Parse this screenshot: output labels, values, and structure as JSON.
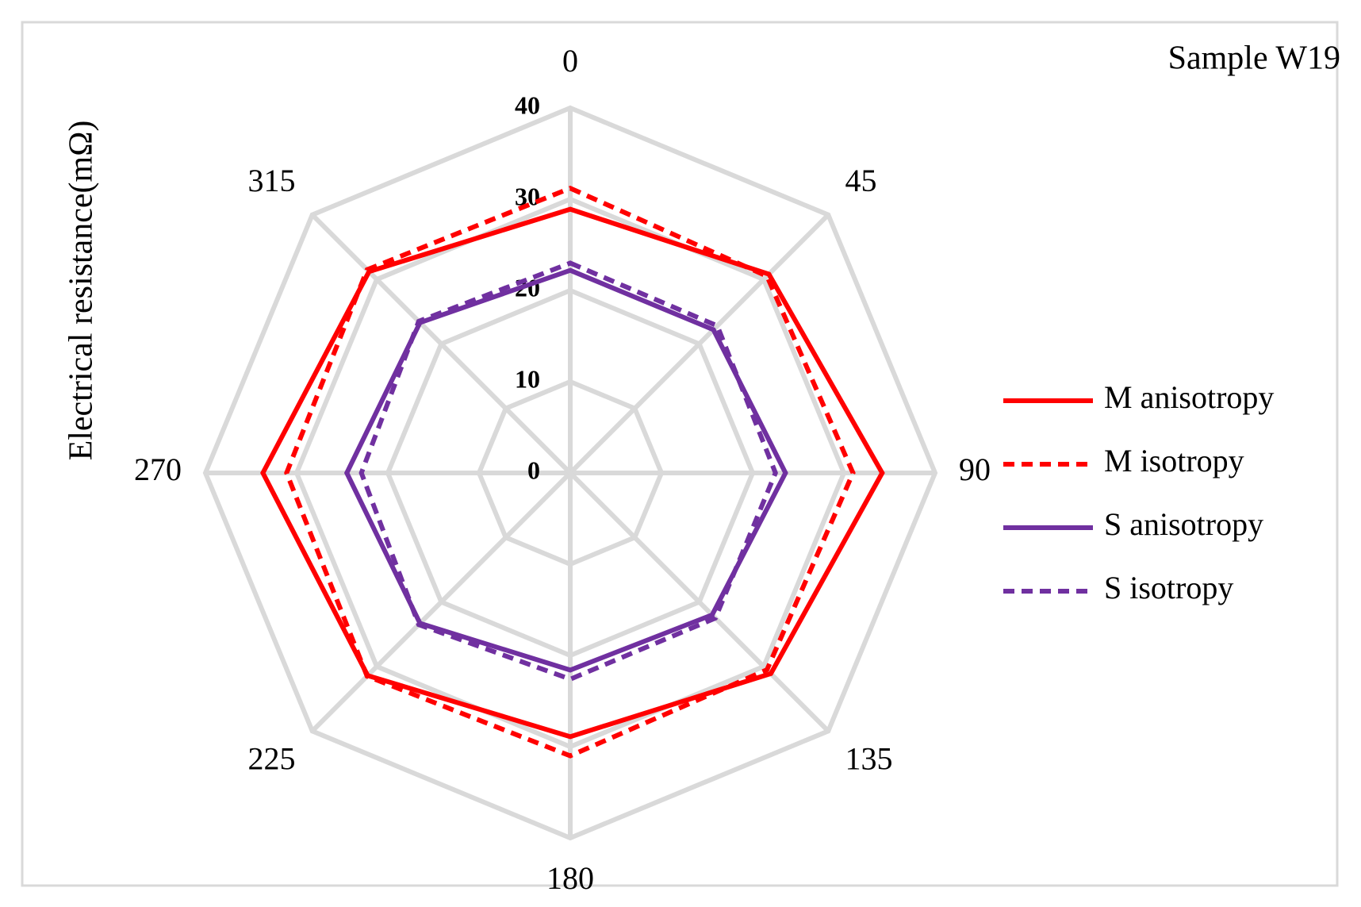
{
  "chart_data": {
    "type": "radar",
    "title": "Sample W19",
    "y_label": "Electrical resistance(mΩ)",
    "categories": [
      "0",
      "45",
      "90",
      "135",
      "180",
      "225",
      "270",
      "315"
    ],
    "ylim": [
      0,
      40
    ],
    "yticks": [
      0,
      10,
      20,
      30,
      40
    ],
    "grid": true,
    "legend": "right",
    "series": [
      {
        "name": "M anisotropy",
        "color": "#ff0000",
        "line_style": "solid",
        "values": [
          28.9,
          30.8,
          34.2,
          31.1,
          28.9,
          31.4,
          33.7,
          31.2
        ]
      },
      {
        "name": "M isotropy",
        "color": "#ff0000",
        "line_style": "dashed",
        "values": [
          31.2,
          30.5,
          31.0,
          30.5,
          31.0,
          31.5,
          31.1,
          31.5
        ]
      },
      {
        "name": "S anisotropy",
        "color": "#7030a0",
        "line_style": "solid",
        "values": [
          22.2,
          22.2,
          23.6,
          22.0,
          21.6,
          23.3,
          24.5,
          23.3
        ]
      },
      {
        "name": "S isotropy",
        "color": "#7030a0",
        "line_style": "dashed",
        "values": [
          23.0,
          22.8,
          22.5,
          22.5,
          22.6,
          23.5,
          22.9,
          23.5
        ]
      }
    ]
  }
}
